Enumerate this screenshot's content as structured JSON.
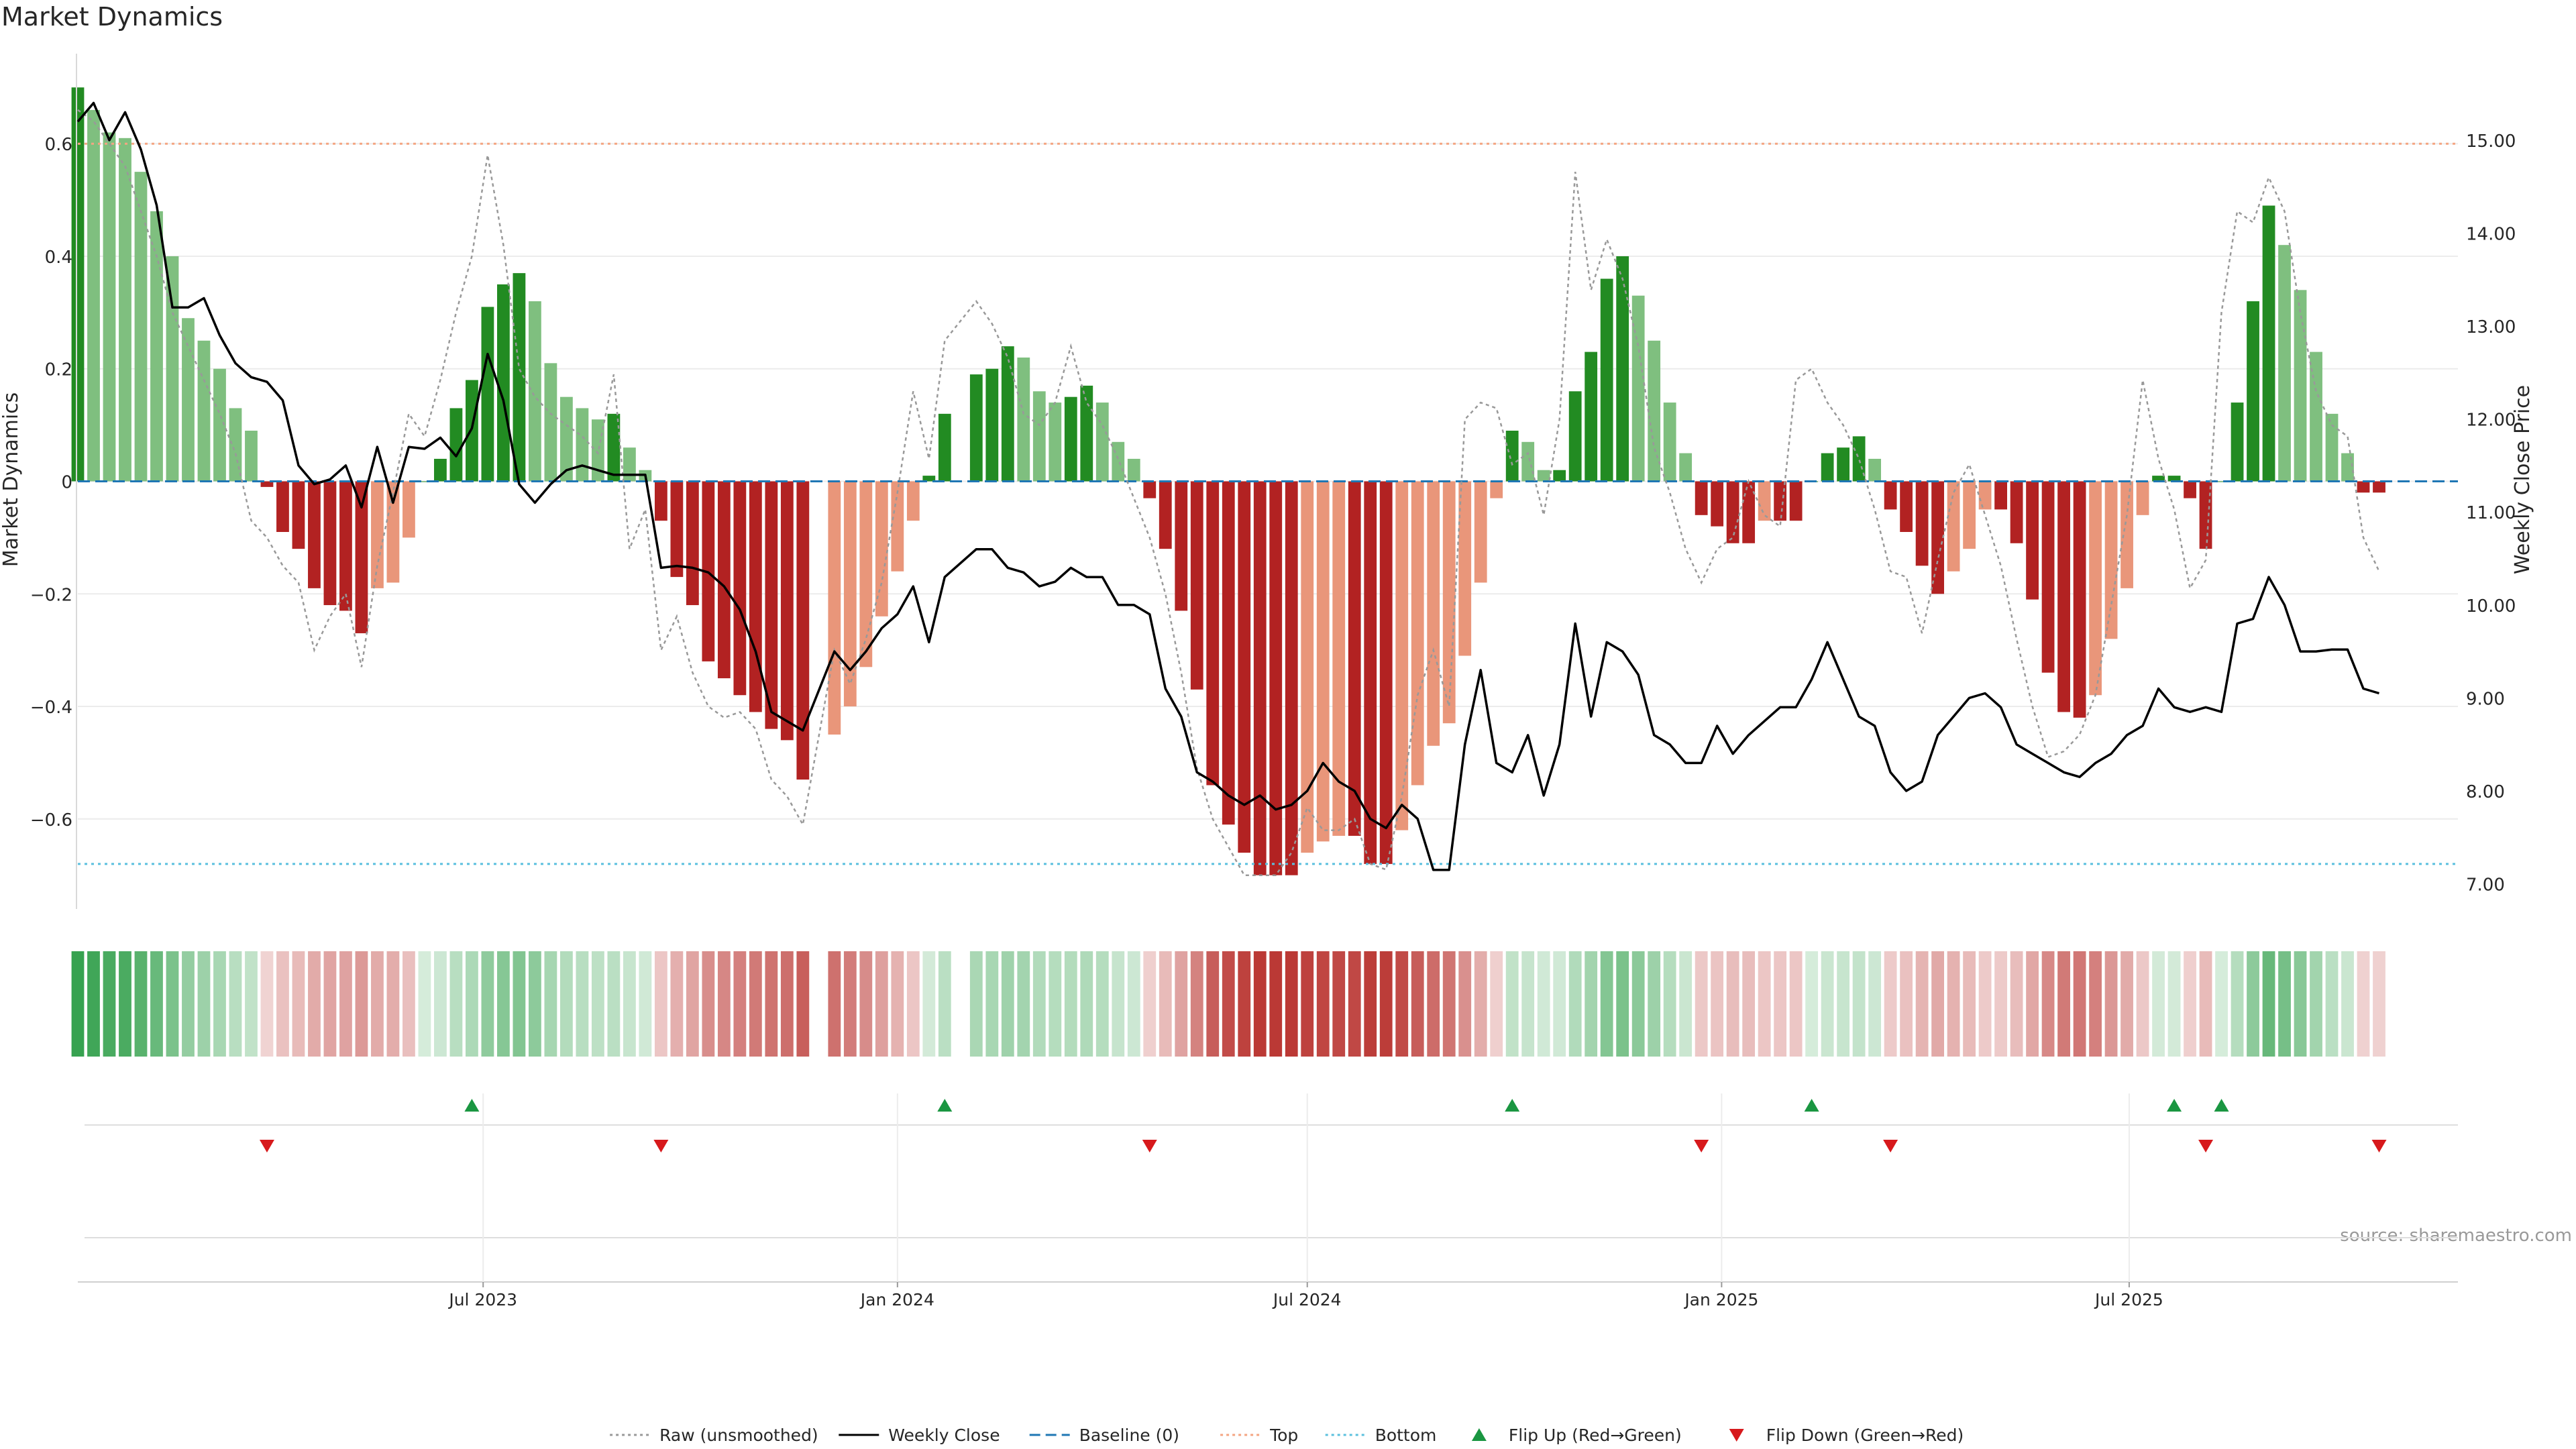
{
  "chart_data": {
    "type": "bar+line",
    "title": "Market Dynamics",
    "ylabel_left": "Market Dynamics",
    "ylabel_right": "Weekly Close Price",
    "source": "source: sharemaestro.com",
    "ylim_left": [
      -0.76,
      0.76
    ],
    "ylim_right": [
      6.73,
      15.93
    ],
    "yticks_left": [
      0.6,
      0.4,
      0.2,
      0,
      -0.2,
      -0.4,
      -0.6
    ],
    "yticks_left_labels": [
      "0.6",
      "0.4",
      "0.2",
      "0",
      "−0.2",
      "−0.4",
      "−0.6"
    ],
    "yticks_right": [
      15.0,
      14.0,
      13.0,
      12.0,
      11.0,
      10.0,
      9.0,
      8.0,
      7.0
    ],
    "yticks_right_labels": [
      "15.00",
      "14.00",
      "13.00",
      "12.00",
      "11.00",
      "10.00",
      "9.00",
      "8.00",
      "7.00"
    ],
    "date_range": [
      "2023-01-02",
      "2025-11-24"
    ],
    "x_ticks": [
      {
        "date": "2023-07-01",
        "label": "Jul 2023"
      },
      {
        "date": "2024-01-01",
        "label": "Jan 2024"
      },
      {
        "date": "2024-07-01",
        "label": "Jul 2024"
      },
      {
        "date": "2025-01-01",
        "label": "Jan 2025"
      },
      {
        "date": "2025-07-01",
        "label": "Jul 2025"
      }
    ],
    "reference_lines": {
      "top": 0.6,
      "bottom": -0.68,
      "baseline": 0
    },
    "colors": {
      "strong_green": "#228B22",
      "light_green": "#7FBF7F",
      "strong_red": "#B22222",
      "light_red": "#E9967A",
      "close_line": "#000000",
      "raw_line": "#999999",
      "baseline": "#1f77b4",
      "top_line": "#f4a582",
      "bottom_line": "#5bc0de",
      "flip_up": "#1a9641",
      "flip_down": "#d7191c"
    },
    "weekly": [
      {
        "date": "2023-01-02",
        "value": 0.7,
        "close": 15.2,
        "raw": 0.66
      },
      {
        "date": "2023-01-09",
        "value": 0.66,
        "close": 15.4,
        "raw": 0.64
      },
      {
        "date": "2023-01-16",
        "value": 0.62,
        "close": 15.0,
        "raw": 0.6
      },
      {
        "date": "2023-01-23",
        "value": 0.61,
        "close": 15.3,
        "raw": 0.56
      },
      {
        "date": "2023-01-30",
        "value": 0.55,
        "close": 14.9,
        "raw": 0.48
      },
      {
        "date": "2023-02-06",
        "value": 0.48,
        "close": 14.3,
        "raw": 0.4
      },
      {
        "date": "2023-02-13",
        "value": 0.4,
        "close": 13.2,
        "raw": 0.3
      },
      {
        "date": "2023-02-20",
        "value": 0.29,
        "close": 13.2,
        "raw": 0.24
      },
      {
        "date": "2023-02-27",
        "value": 0.25,
        "close": 13.3,
        "raw": 0.18
      },
      {
        "date": "2023-03-06",
        "value": 0.2,
        "close": 12.9,
        "raw": 0.12
      },
      {
        "date": "2023-03-13",
        "value": 0.13,
        "close": 12.6,
        "raw": 0.05
      },
      {
        "date": "2023-03-20",
        "value": 0.09,
        "close": 12.45,
        "raw": -0.07
      },
      {
        "date": "2023-03-27",
        "value": -0.01,
        "close": 12.4,
        "raw": -0.1
      },
      {
        "date": "2023-04-03",
        "value": -0.09,
        "close": 12.2,
        "raw": -0.15
      },
      {
        "date": "2023-04-10",
        "value": -0.12,
        "close": 11.5,
        "raw": -0.18
      },
      {
        "date": "2023-04-17",
        "value": -0.19,
        "close": 11.3,
        "raw": -0.3
      },
      {
        "date": "2023-04-24",
        "value": -0.22,
        "close": 11.35,
        "raw": -0.24
      },
      {
        "date": "2023-05-01",
        "value": -0.23,
        "close": 11.5,
        "raw": -0.2
      },
      {
        "date": "2023-05-08",
        "value": -0.27,
        "close": 11.05,
        "raw": -0.33
      },
      {
        "date": "2023-05-15",
        "value": -0.19,
        "close": 11.7,
        "raw": -0.15
      },
      {
        "date": "2023-05-22",
        "value": -0.18,
        "close": 11.1,
        "raw": -0.02
      },
      {
        "date": "2023-05-29",
        "value": -0.1,
        "close": 11.7,
        "raw": 0.12
      },
      {
        "date": "2023-06-05",
        "value": 0.0,
        "close": 11.68,
        "raw": 0.08
      },
      {
        "date": "2023-06-12",
        "value": 0.04,
        "close": 11.8,
        "raw": 0.18
      },
      {
        "date": "2023-06-19",
        "value": 0.13,
        "close": 11.6,
        "raw": 0.3
      },
      {
        "date": "2023-06-26",
        "value": 0.18,
        "close": 11.9,
        "raw": 0.4
      },
      {
        "date": "2023-07-03",
        "value": 0.31,
        "close": 12.7,
        "raw": 0.58
      },
      {
        "date": "2023-07-10",
        "value": 0.35,
        "close": 12.2,
        "raw": 0.42
      },
      {
        "date": "2023-07-17",
        "value": 0.37,
        "close": 11.3,
        "raw": 0.2
      },
      {
        "date": "2023-07-24",
        "value": 0.32,
        "close": 11.1,
        "raw": 0.15
      },
      {
        "date": "2023-07-31",
        "value": 0.21,
        "close": 11.3,
        "raw": 0.12
      },
      {
        "date": "2023-08-07",
        "value": 0.15,
        "close": 11.45,
        "raw": 0.1
      },
      {
        "date": "2023-08-14",
        "value": 0.13,
        "close": 11.5,
        "raw": 0.08
      },
      {
        "date": "2023-08-21",
        "value": 0.11,
        "close": 11.45,
        "raw": 0.05
      },
      {
        "date": "2023-08-28",
        "value": 0.12,
        "close": 11.4,
        "raw": 0.19
      },
      {
        "date": "2023-09-04",
        "value": 0.06,
        "close": 11.4,
        "raw": -0.12
      },
      {
        "date": "2023-09-11",
        "value": 0.02,
        "close": 11.4,
        "raw": -0.05
      },
      {
        "date": "2023-09-18",
        "value": -0.07,
        "close": 10.4,
        "raw": -0.3
      },
      {
        "date": "2023-09-25",
        "value": -0.17,
        "close": 10.42,
        "raw": -0.24
      },
      {
        "date": "2023-10-02",
        "value": -0.22,
        "close": 10.4,
        "raw": -0.34
      },
      {
        "date": "2023-10-09",
        "value": -0.32,
        "close": 10.35,
        "raw": -0.4
      },
      {
        "date": "2023-10-16",
        "value": -0.35,
        "close": 10.2,
        "raw": -0.42
      },
      {
        "date": "2023-10-23",
        "value": -0.38,
        "close": 9.95,
        "raw": -0.41
      },
      {
        "date": "2023-10-30",
        "value": -0.41,
        "close": 9.5,
        "raw": -0.44
      },
      {
        "date": "2023-11-06",
        "value": -0.44,
        "close": 8.85,
        "raw": -0.53
      },
      {
        "date": "2023-11-13",
        "value": -0.46,
        "close": 8.75,
        "raw": -0.56
      },
      {
        "date": "2023-11-20",
        "value": -0.53,
        "close": 8.65,
        "raw": -0.61
      },
      {
        "date": "2023-12-04",
        "value": -0.45,
        "close": 9.5,
        "raw": -0.3
      },
      {
        "date": "2023-12-11",
        "value": -0.4,
        "close": 9.3,
        "raw": -0.36
      },
      {
        "date": "2023-12-18",
        "value": -0.33,
        "close": 9.5,
        "raw": -0.28
      },
      {
        "date": "2023-12-25",
        "value": -0.24,
        "close": 9.75,
        "raw": -0.18
      },
      {
        "date": "2024-01-01",
        "value": -0.16,
        "close": 9.9,
        "raw": -0.02
      },
      {
        "date": "2024-01-08",
        "value": -0.07,
        "close": 10.2,
        "raw": 0.16
      },
      {
        "date": "2024-01-15",
        "value": 0.01,
        "close": 9.6,
        "raw": 0.04
      },
      {
        "date": "2024-01-22",
        "value": 0.12,
        "close": 10.3,
        "raw": 0.25
      },
      {
        "date": "2024-02-05",
        "value": 0.19,
        "close": 10.6,
        "raw": 0.32
      },
      {
        "date": "2024-02-12",
        "value": 0.2,
        "close": 10.6,
        "raw": 0.28
      },
      {
        "date": "2024-02-19",
        "value": 0.24,
        "close": 10.4,
        "raw": 0.22
      },
      {
        "date": "2024-02-26",
        "value": 0.22,
        "close": 10.35,
        "raw": 0.12
      },
      {
        "date": "2024-03-04",
        "value": 0.16,
        "close": 10.2,
        "raw": 0.1
      },
      {
        "date": "2024-03-11",
        "value": 0.14,
        "close": 10.25,
        "raw": 0.14
      },
      {
        "date": "2024-03-18",
        "value": 0.15,
        "close": 10.4,
        "raw": 0.24
      },
      {
        "date": "2024-03-25",
        "value": 0.17,
        "close": 10.3,
        "raw": 0.14
      },
      {
        "date": "2024-04-01",
        "value": 0.14,
        "close": 10.3,
        "raw": 0.1
      },
      {
        "date": "2024-04-08",
        "value": 0.07,
        "close": 10.0,
        "raw": 0.04
      },
      {
        "date": "2024-04-15",
        "value": 0.04,
        "close": 10.0,
        "raw": -0.03
      },
      {
        "date": "2024-04-22",
        "value": -0.03,
        "close": 9.9,
        "raw": -0.1
      },
      {
        "date": "2024-04-29",
        "value": -0.12,
        "close": 9.1,
        "raw": -0.2
      },
      {
        "date": "2024-05-06",
        "value": -0.23,
        "close": 8.8,
        "raw": -0.34
      },
      {
        "date": "2024-05-13",
        "value": -0.37,
        "close": 8.2,
        "raw": -0.51
      },
      {
        "date": "2024-05-20",
        "value": -0.54,
        "close": 8.1,
        "raw": -0.6
      },
      {
        "date": "2024-05-27",
        "value": -0.61,
        "close": 7.95,
        "raw": -0.65
      },
      {
        "date": "2024-06-03",
        "value": -0.66,
        "close": 7.85,
        "raw": -0.7
      },
      {
        "date": "2024-06-10",
        "value": -0.7,
        "close": 7.95,
        "raw": -0.7
      },
      {
        "date": "2024-06-17",
        "value": -0.7,
        "close": 7.8,
        "raw": -0.7
      },
      {
        "date": "2024-06-24",
        "value": -0.7,
        "close": 7.85,
        "raw": -0.66
      },
      {
        "date": "2024-07-01",
        "value": -0.66,
        "close": 8.0,
        "raw": -0.58
      },
      {
        "date": "2024-07-08",
        "value": -0.64,
        "close": 8.3,
        "raw": -0.62
      },
      {
        "date": "2024-07-15",
        "value": -0.63,
        "close": 8.1,
        "raw": -0.62
      },
      {
        "date": "2024-07-22",
        "value": -0.63,
        "close": 8.0,
        "raw": -0.6
      },
      {
        "date": "2024-07-29",
        "value": -0.68,
        "close": 7.7,
        "raw": -0.68
      },
      {
        "date": "2024-08-05",
        "value": -0.68,
        "close": 7.6,
        "raw": -0.69
      },
      {
        "date": "2024-08-12",
        "value": -0.62,
        "close": 7.85,
        "raw": -0.56
      },
      {
        "date": "2024-08-19",
        "value": -0.54,
        "close": 7.7,
        "raw": -0.38
      },
      {
        "date": "2024-08-26",
        "value": -0.47,
        "close": 7.15,
        "raw": -0.3
      },
      {
        "date": "2024-09-02",
        "value": -0.43,
        "close": 7.15,
        "raw": -0.4
      },
      {
        "date": "2024-09-09",
        "value": -0.31,
        "close": 8.5,
        "raw": 0.11
      },
      {
        "date": "2024-09-16",
        "value": -0.18,
        "close": 9.3,
        "raw": 0.14
      },
      {
        "date": "2024-09-23",
        "value": -0.03,
        "close": 8.3,
        "raw": 0.13
      },
      {
        "date": "2024-09-30",
        "value": 0.09,
        "close": 8.2,
        "raw": 0.03
      },
      {
        "date": "2024-10-07",
        "value": 0.07,
        "close": 8.6,
        "raw": 0.05
      },
      {
        "date": "2024-10-14",
        "value": 0.02,
        "close": 7.95,
        "raw": -0.06
      },
      {
        "date": "2024-10-21",
        "value": 0.02,
        "close": 8.5,
        "raw": 0.11
      },
      {
        "date": "2024-10-28",
        "value": 0.16,
        "close": 9.8,
        "raw": 0.55
      },
      {
        "date": "2024-11-04",
        "value": 0.23,
        "close": 8.8,
        "raw": 0.34
      },
      {
        "date": "2024-11-11",
        "value": 0.36,
        "close": 9.6,
        "raw": 0.43
      },
      {
        "date": "2024-11-18",
        "value": 0.4,
        "close": 9.5,
        "raw": 0.36
      },
      {
        "date": "2024-11-25",
        "value": 0.33,
        "close": 9.25,
        "raw": 0.24
      },
      {
        "date": "2024-12-02",
        "value": 0.25,
        "close": 8.6,
        "raw": 0.06
      },
      {
        "date": "2024-12-09",
        "value": 0.14,
        "close": 8.5,
        "raw": -0.02
      },
      {
        "date": "2024-12-16",
        "value": 0.05,
        "close": 8.3,
        "raw": -0.12
      },
      {
        "date": "2024-12-23",
        "value": -0.06,
        "close": 8.3,
        "raw": -0.18
      },
      {
        "date": "2024-12-30",
        "value": -0.08,
        "close": 8.7,
        "raw": -0.12
      },
      {
        "date": "2025-01-06",
        "value": -0.11,
        "close": 8.4,
        "raw": -0.1
      },
      {
        "date": "2025-01-13",
        "value": -0.11,
        "close": 8.6,
        "raw": 0.0
      },
      {
        "date": "2025-01-20",
        "value": -0.07,
        "close": 8.75,
        "raw": -0.06
      },
      {
        "date": "2025-01-27",
        "value": -0.07,
        "close": 8.9,
        "raw": -0.08
      },
      {
        "date": "2025-02-03",
        "value": -0.07,
        "close": 8.9,
        "raw": 0.18
      },
      {
        "date": "2025-02-10",
        "value": 0.0,
        "close": 9.2,
        "raw": 0.2
      },
      {
        "date": "2025-02-17",
        "value": 0.05,
        "close": 9.6,
        "raw": 0.14
      },
      {
        "date": "2025-02-24",
        "value": 0.06,
        "close": 9.2,
        "raw": 0.1
      },
      {
        "date": "2025-03-03",
        "value": 0.08,
        "close": 8.8,
        "raw": 0.04
      },
      {
        "date": "2025-03-10",
        "value": 0.04,
        "close": 8.7,
        "raw": -0.05
      },
      {
        "date": "2025-03-17",
        "value": -0.05,
        "close": 8.2,
        "raw": -0.16
      },
      {
        "date": "2025-03-24",
        "value": -0.09,
        "close": 8.0,
        "raw": -0.17
      },
      {
        "date": "2025-03-31",
        "value": -0.15,
        "close": 8.1,
        "raw": -0.27
      },
      {
        "date": "2025-04-07",
        "value": -0.2,
        "close": 8.6,
        "raw": -0.14
      },
      {
        "date": "2025-04-14",
        "value": -0.16,
        "close": 8.8,
        "raw": -0.02
      },
      {
        "date": "2025-04-21",
        "value": -0.12,
        "close": 9.0,
        "raw": 0.03
      },
      {
        "date": "2025-04-28",
        "value": -0.05,
        "close": 9.05,
        "raw": -0.06
      },
      {
        "date": "2025-05-05",
        "value": -0.05,
        "close": 8.9,
        "raw": -0.15
      },
      {
        "date": "2025-05-12",
        "value": -0.11,
        "close": 8.5,
        "raw": -0.28
      },
      {
        "date": "2025-05-19",
        "value": -0.21,
        "close": 8.4,
        "raw": -0.4
      },
      {
        "date": "2025-05-26",
        "value": -0.34,
        "close": 8.3,
        "raw": -0.49
      },
      {
        "date": "2025-06-02",
        "value": -0.41,
        "close": 8.2,
        "raw": -0.48
      },
      {
        "date": "2025-06-09",
        "value": -0.42,
        "close": 8.15,
        "raw": -0.45
      },
      {
        "date": "2025-06-16",
        "value": -0.38,
        "close": 8.3,
        "raw": -0.38
      },
      {
        "date": "2025-06-23",
        "value": -0.28,
        "close": 8.4,
        "raw": -0.22
      },
      {
        "date": "2025-06-30",
        "value": -0.19,
        "close": 8.6,
        "raw": -0.06
      },
      {
        "date": "2025-07-07",
        "value": -0.06,
        "close": 8.7,
        "raw": 0.18
      },
      {
        "date": "2025-07-14",
        "value": 0.01,
        "close": 9.1,
        "raw": 0.04
      },
      {
        "date": "2025-07-21",
        "value": 0.01,
        "close": 8.9,
        "raw": -0.05
      },
      {
        "date": "2025-07-28",
        "value": -0.03,
        "close": 8.85,
        "raw": -0.19
      },
      {
        "date": "2025-08-04",
        "value": -0.12,
        "close": 8.9,
        "raw": -0.14
      },
      {
        "date": "2025-08-11",
        "value": 0.0,
        "close": 8.85,
        "raw": 0.3
      },
      {
        "date": "2025-08-18",
        "value": 0.14,
        "close": 9.8,
        "raw": 0.48
      },
      {
        "date": "2025-08-25",
        "value": 0.32,
        "close": 9.85,
        "raw": 0.46
      },
      {
        "date": "2025-09-01",
        "value": 0.49,
        "close": 10.3,
        "raw": 0.54
      },
      {
        "date": "2025-09-08",
        "value": 0.42,
        "close": 10.0,
        "raw": 0.48
      },
      {
        "date": "2025-09-15",
        "value": 0.34,
        "close": 9.5,
        "raw": 0.3
      },
      {
        "date": "2025-09-22",
        "value": 0.23,
        "close": 9.5,
        "raw": 0.16
      },
      {
        "date": "2025-09-29",
        "value": 0.12,
        "close": 9.52,
        "raw": 0.1
      },
      {
        "date": "2025-10-06",
        "value": 0.05,
        "close": 9.52,
        "raw": 0.08
      },
      {
        "date": "2025-10-13",
        "value": -0.02,
        "close": 9.1,
        "raw": -0.1
      },
      {
        "date": "2025-10-20",
        "value": -0.02,
        "close": 9.05,
        "raw": -0.16
      }
    ],
    "flip_up_dates": [
      "2023-06-26",
      "2024-01-22",
      "2024-09-30",
      "2025-02-10",
      "2025-07-21",
      "2025-08-11"
    ],
    "flip_down_dates": [
      "2023-03-27",
      "2023-09-18",
      "2024-04-22",
      "2024-12-23",
      "2025-03-17",
      "2025-08-04",
      "2025-10-20"
    ],
    "legend": {
      "position": "bottom-center",
      "items": [
        {
          "label": "Raw (unsmoothed)",
          "type": "dotted-line",
          "color": "#999999"
        },
        {
          "label": "Weekly Close",
          "type": "line",
          "color": "#000000"
        },
        {
          "label": "Baseline (0)",
          "type": "dashed-line",
          "color": "#1f77b4"
        },
        {
          "label": "Top",
          "type": "dotted-line",
          "color": "#f4a582"
        },
        {
          "label": "Bottom",
          "type": "dotted-line",
          "color": "#5bc0de"
        },
        {
          "label": "Flip Up (Red→Green)",
          "type": "triangle-up",
          "color": "#1a9641"
        },
        {
          "label": "Flip Down (Green→Red)",
          "type": "triangle-down",
          "color": "#d7191c"
        }
      ]
    }
  }
}
